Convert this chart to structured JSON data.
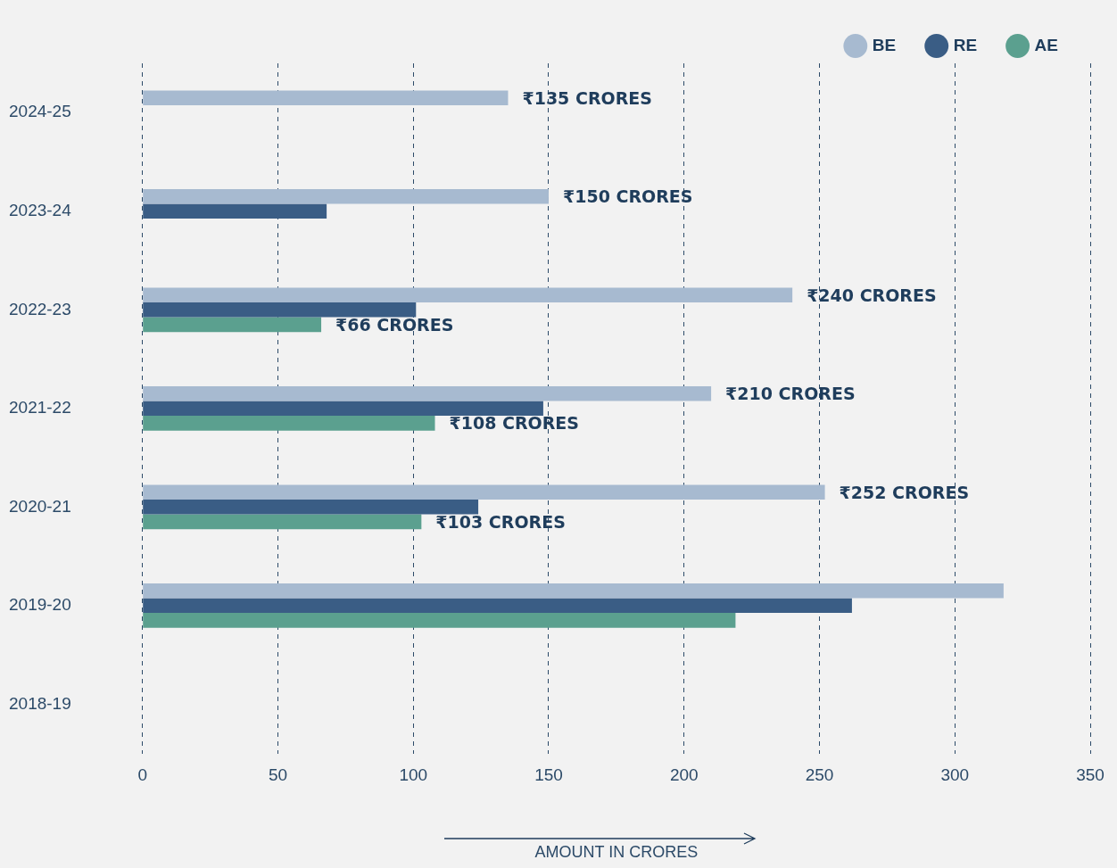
{
  "chart_data": {
    "type": "bar",
    "orientation": "horizontal",
    "xlabel": "AMOUNT IN CRORES",
    "categories": [
      "2024-25",
      "2023-24",
      "2022-23",
      "2021-22",
      "2020-21",
      "2019-20",
      "2018-19"
    ],
    "series": [
      {
        "name": "BE",
        "color": "#a7bad0",
        "values": [
          135,
          150,
          240,
          210,
          252,
          318,
          null
        ],
        "value_labels": [
          "₹135 CRORES",
          "₹150 CRORES",
          "₹240 CRORES",
          "₹210 CRORES",
          "₹252 CRORES",
          null,
          null
        ]
      },
      {
        "name": "RE",
        "color": "#3a5d85",
        "values": [
          null,
          68,
          101,
          148,
          124,
          262,
          null
        ]
      },
      {
        "name": "AE",
        "color": "#5ba08f",
        "values": [
          null,
          null,
          66,
          108,
          103,
          219,
          null
        ],
        "value_labels": [
          null,
          null,
          "₹66 CRORES",
          "₹108 CRORES",
          "₹103 CRORES",
          null,
          null
        ]
      }
    ],
    "xlim": [
      0,
      350
    ],
    "xticks": [
      0,
      50,
      100,
      150,
      200,
      250,
      300,
      350
    ],
    "grid": "x",
    "legend": "top right"
  }
}
